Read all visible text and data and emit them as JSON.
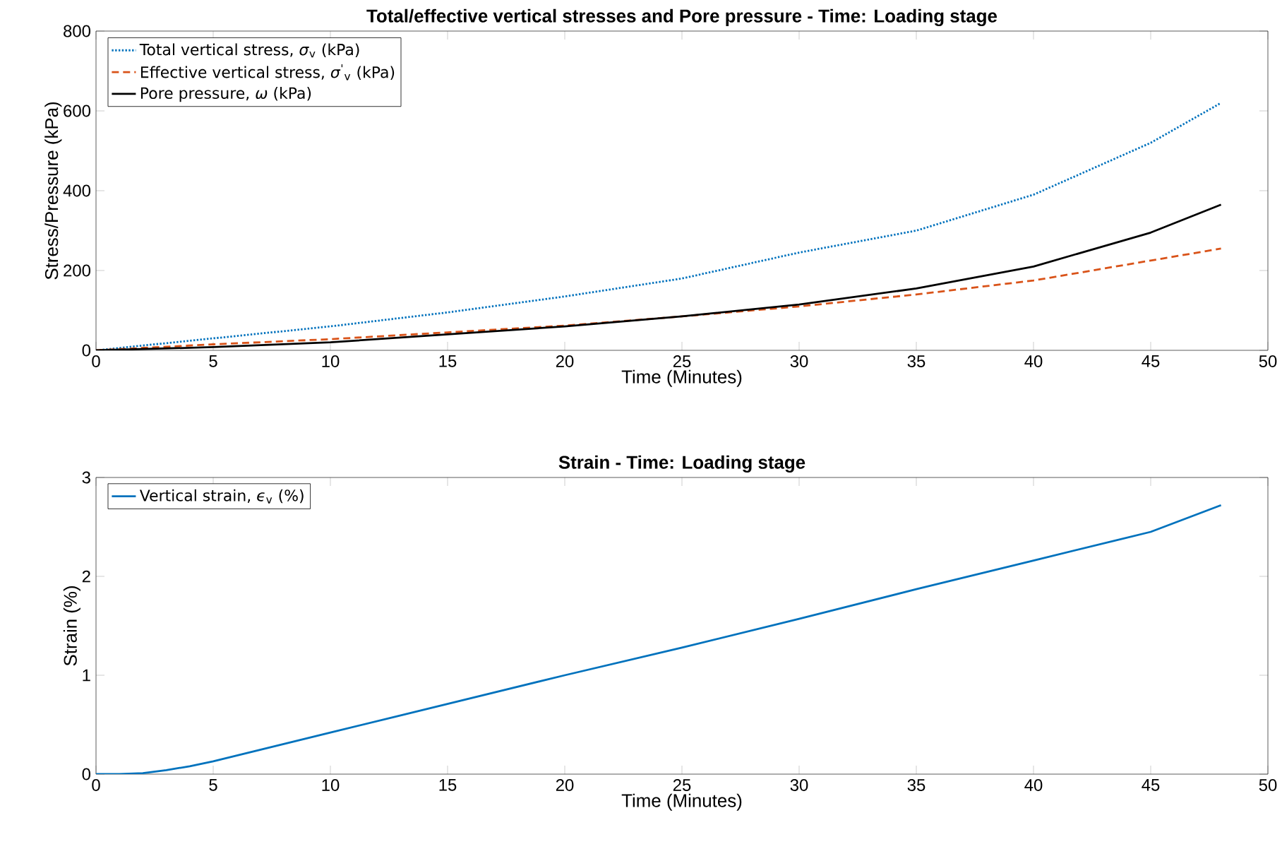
{
  "chart_data": [
    {
      "type": "line",
      "title": "Total/effective vertical stresses and Pore pressure - Time: Loading stage",
      "xlabel": "Time (Minutes)",
      "ylabel": "Stress/Pressure (kPa)",
      "x": [
        0,
        5,
        10,
        15,
        20,
        25,
        30,
        35,
        40,
        45,
        48
      ],
      "series": [
        {
          "name": "Total vertical stress,  *σ*$_{v}$ (kPa)",
          "color": "#0072bd",
          "line_style": "dotted",
          "values": [
            0,
            30,
            60,
            95,
            135,
            180,
            245,
            300,
            390,
            520,
            620
          ]
        },
        {
          "name": "Effective vertical stress,  *σ*$^{'}$$_{v}$ (kPa)",
          "color": "#d95319",
          "line_style": "dashed",
          "values": [
            0,
            15,
            28,
            45,
            62,
            85,
            110,
            140,
            175,
            225,
            255
          ]
        },
        {
          "name": "Pore pressure, *ω* (kPa)",
          "color": "#000000",
          "line_style": "solid",
          "values": [
            0,
            8,
            20,
            40,
            60,
            85,
            115,
            155,
            210,
            295,
            365
          ]
        }
      ],
      "xlim": [
        0,
        50
      ],
      "ylim": [
        0,
        800
      ],
      "xticks": [
        0,
        5,
        10,
        15,
        20,
        25,
        30,
        35,
        40,
        45,
        50
      ],
      "yticks": [
        0,
        200,
        400,
        600,
        800
      ],
      "legend": "top left"
    },
    {
      "type": "line",
      "title": "Strain - Time: Loading stage",
      "xlabel": "Time (Minutes)",
      "ylabel": "Strain (%)",
      "x": [
        0,
        1,
        2,
        3,
        4,
        5,
        10,
        15,
        20,
        25,
        30,
        35,
        40,
        45,
        48
      ],
      "series": [
        {
          "name": "Vertical strain, *ϵ*$_{v}$ (%)",
          "color": "#0072bd",
          "line_style": "solid",
          "values": [
            0,
            0,
            0.01,
            0.04,
            0.08,
            0.13,
            0.42,
            0.71,
            1.0,
            1.28,
            1.57,
            1.87,
            2.16,
            2.45,
            2.72
          ]
        }
      ],
      "xlim": [
        0,
        50
      ],
      "ylim": [
        0,
        3
      ],
      "xticks": [
        0,
        5,
        10,
        15,
        20,
        25,
        30,
        35,
        40,
        45,
        50
      ],
      "yticks": [
        0,
        1,
        2,
        3
      ],
      "legend": "top left"
    }
  ]
}
